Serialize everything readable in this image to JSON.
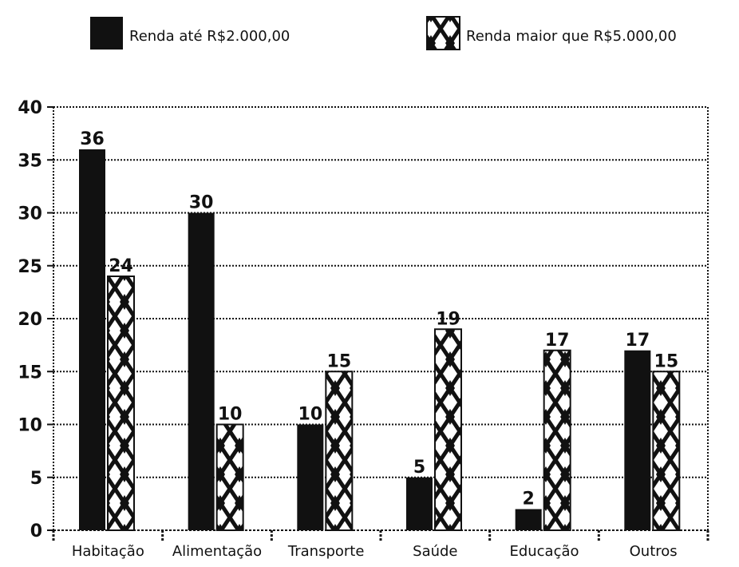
{
  "colors": {
    "series_low_fill": "#111111",
    "pattern_fill": "#ffffff",
    "pattern_diamond": "#111111",
    "grid": "#111111"
  },
  "chart_data": {
    "type": "bar",
    "categories": [
      "Habitação",
      "Alimentação",
      "Transporte",
      "Saúde",
      "Educação",
      "Outros"
    ],
    "series": [
      {
        "name": "Renda até R$2.000,00",
        "values": [
          36,
          30,
          10,
          5,
          2,
          17
        ]
      },
      {
        "name": "Renda maior que R$5.000,00",
        "values": [
          24,
          10,
          15,
          19,
          17,
          15
        ]
      }
    ],
    "ylim": [
      0,
      40
    ],
    "yticks": [
      0,
      5,
      10,
      15,
      20,
      25,
      30,
      35,
      40
    ],
    "data_labels": [
      [
        "36",
        "30",
        "10",
        "5",
        "2",
        "17"
      ],
      [
        "24",
        "10",
        "15",
        "19",
        "17",
        "15"
      ]
    ],
    "grid": "horizontal-dotted",
    "legend_placement": "top"
  }
}
